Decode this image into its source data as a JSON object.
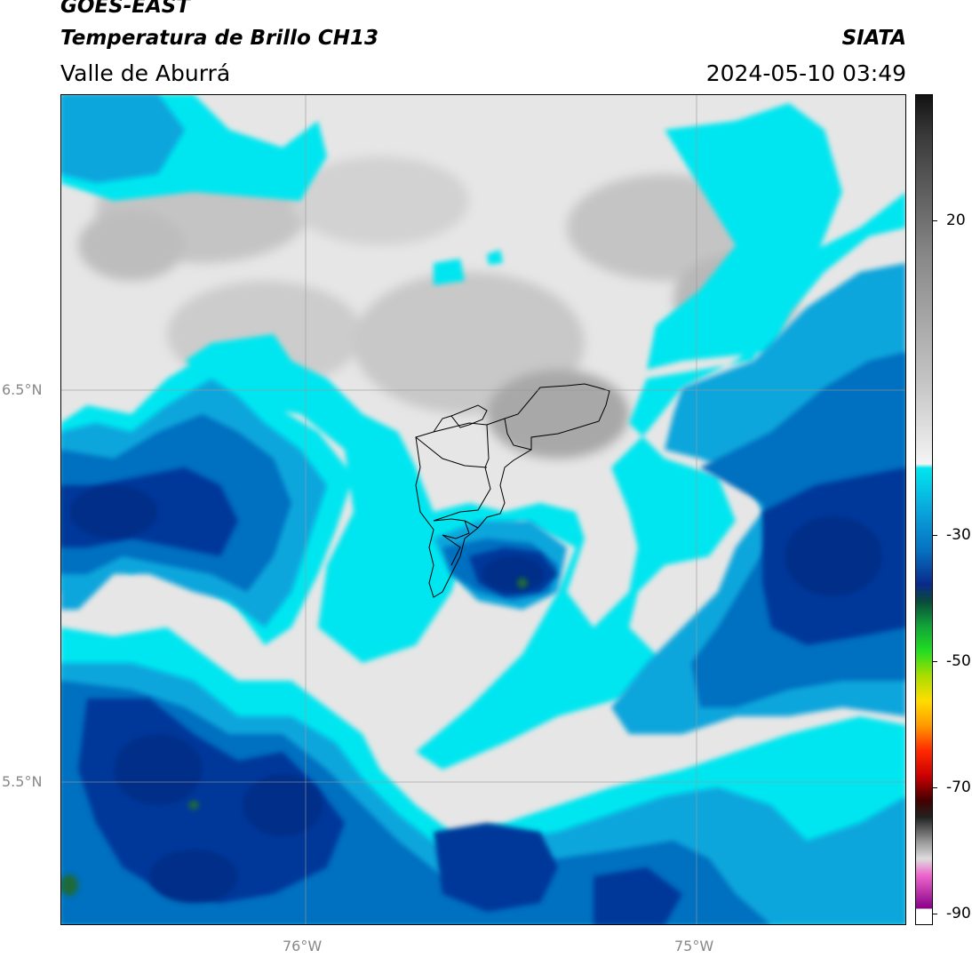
{
  "header": {
    "satellite": "GOES-EAST",
    "product": "Temperatura de Brillo CH13",
    "region": "Valle de Aburrá",
    "agency": "SIATA",
    "datetime": "2024-05-10 03:49"
  },
  "axes": {
    "lat_labels": [
      "6.5°N",
      "5.5°N"
    ],
    "lon_labels": [
      "76°W",
      "75°W"
    ]
  },
  "colorbar": {
    "ticks": [
      "20",
      "-30",
      "-50",
      "-70",
      "-90"
    ],
    "range": [
      -92,
      40
    ]
  },
  "colors": {
    "cyan": "#00e6f0",
    "blue_light": "#0aa6dc",
    "blue_mid": "#0570c0",
    "blue_dark": "#03399a",
    "navy": "#062f88",
    "gray_light": "#e6e6e6",
    "gray_mid": "#c4c4c4",
    "gray_dark": "#9a9a9a"
  }
}
